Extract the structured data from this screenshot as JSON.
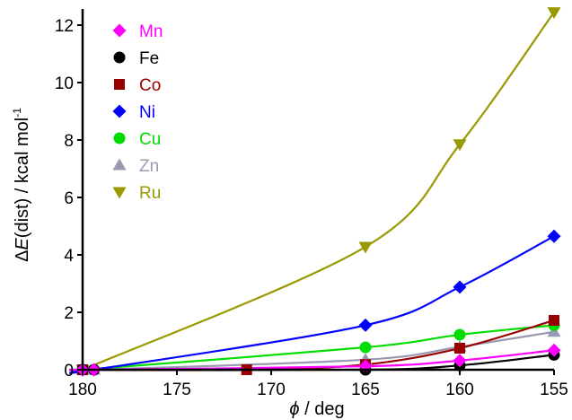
{
  "chart_data": {
    "type": "line",
    "xlabel_symbol": "ϕ",
    "xlabel_unit": " / deg",
    "ylabel_prefix": "Δ",
    "ylabel_symbol": "E",
    "ylabel_rest": "(dist) / kcal mol",
    "ylabel_superscript": "-1",
    "x_reversed": true,
    "xlim": [
      180,
      155
    ],
    "ylim": [
      0,
      12.5
    ],
    "x_ticks": [
      180,
      175,
      170,
      165,
      160,
      155
    ],
    "y_ticks": [
      0,
      2,
      4,
      6,
      8,
      10,
      12
    ],
    "legend_position": "top-left",
    "grid": false,
    "series": [
      {
        "name": "Mn",
        "color": "#ff00ff",
        "marker": "diamond",
        "x": [
          180,
          179.4,
          165,
          160,
          155
        ],
        "y": [
          0,
          0,
          0.12,
          0.32,
          0.68
        ]
      },
      {
        "name": "Fe",
        "color": "#000000",
        "marker": "circle",
        "x": [
          180,
          179.4,
          165,
          160,
          155
        ],
        "y": [
          0,
          0,
          0,
          0.15,
          0.52
        ]
      },
      {
        "name": "Co",
        "color": "#990000",
        "marker": "square",
        "x": [
          180,
          171.3,
          165,
          160,
          155
        ],
        "y": [
          0,
          0,
          0.18,
          0.75,
          1.72
        ]
      },
      {
        "name": "Ni",
        "color": "#0000ff",
        "marker": "diamond",
        "x": [
          180,
          179.4,
          165,
          160,
          155
        ],
        "y": [
          0,
          0,
          1.55,
          2.88,
          4.65
        ]
      },
      {
        "name": "Cu",
        "color": "#00dd00",
        "marker": "circle",
        "x": [
          180,
          165,
          160,
          155
        ],
        "y": [
          0,
          0.78,
          1.22,
          1.55
        ]
      },
      {
        "name": "Zn",
        "color": "#9999b3",
        "marker": "triangle-up",
        "x": [
          180,
          179.4,
          165,
          160,
          155
        ],
        "y": [
          0,
          0,
          0.35,
          0.8,
          1.32
        ]
      },
      {
        "name": "Ru",
        "color": "#999900",
        "marker": "triangle-down",
        "x": [
          180,
          165,
          160,
          155
        ],
        "y": [
          0,
          4.28,
          7.85,
          12.45
        ]
      }
    ]
  }
}
